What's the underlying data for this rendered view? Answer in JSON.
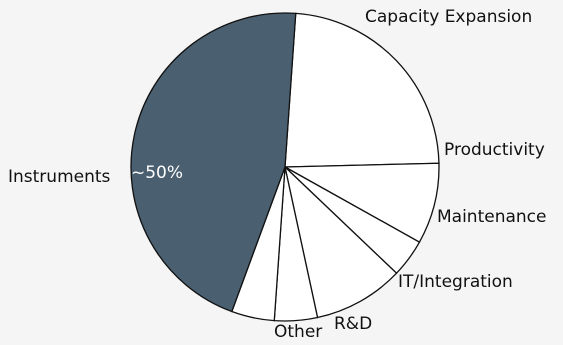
{
  "chart_data": {
    "type": "pie",
    "title": "",
    "slices": [
      {
        "label": "Capacity Expansion",
        "value": 23.5,
        "color": "#ffffff"
      },
      {
        "label": "Productivity",
        "value": 8.5,
        "color": "#ffffff"
      },
      {
        "label": "Maintenance",
        "value": 4.0,
        "color": "#ffffff"
      },
      {
        "label": "IT/Integration",
        "value": 9.5,
        "color": "#ffffff"
      },
      {
        "label": "R&D",
        "value": 4.5,
        "color": "#ffffff"
      },
      {
        "label": "Other",
        "value": 4.5,
        "color": "#ffffff"
      },
      {
        "label": "Instruments",
        "value": 45.5,
        "color": "#4a6070"
      }
    ],
    "annotation": "~50%",
    "start_angle_deg": 4
  }
}
